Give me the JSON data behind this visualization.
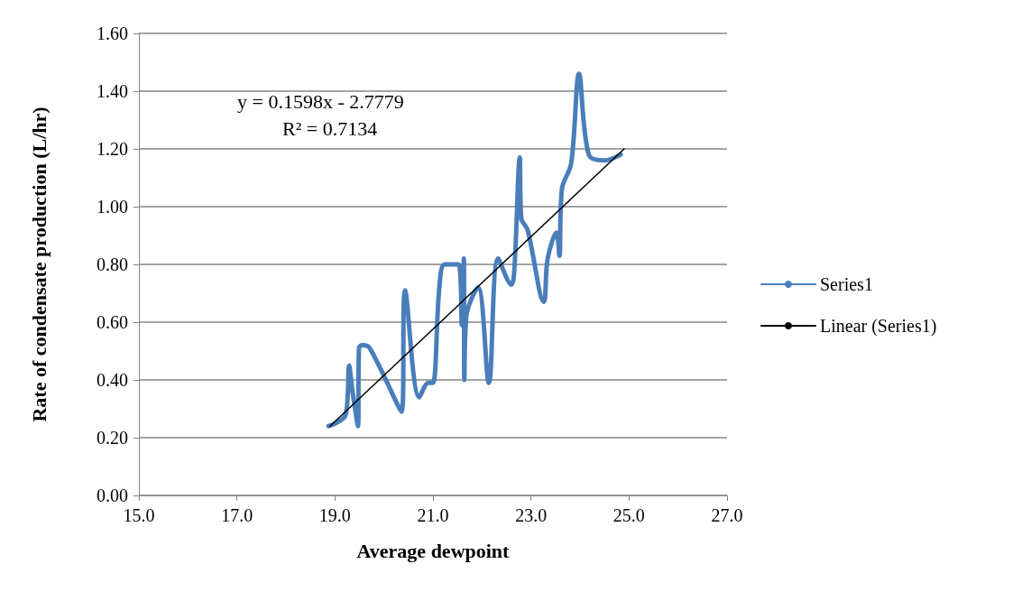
{
  "chart_data": {
    "type": "line",
    "xlabel": "Average dewpoint",
    "ylabel": "Rate of condensate production (L/hr)",
    "annotations": [
      "y = 0.1598x - 2.7779",
      "R² = 0.7134"
    ],
    "series": [
      {
        "name": "Series1",
        "color": "#4a7ebb",
        "x": [
          18.87,
          19.22,
          19.29,
          19.35,
          19.47,
          19.49,
          19.56,
          19.71,
          20.36,
          20.43,
          20.72,
          20.91,
          21.0,
          21.13,
          21.24,
          21.52,
          21.59,
          21.63,
          21.64,
          21.68,
          21.92,
          22.14,
          22.33,
          22.6,
          22.66,
          22.77,
          22.8,
          22.93,
          23.26,
          23.34,
          23.52,
          23.58,
          23.63,
          23.82,
          23.98,
          24.18,
          24.5,
          24.83
        ],
        "values": [
          0.24,
          0.28,
          0.45,
          0.37,
          0.24,
          0.51,
          0.52,
          0.51,
          0.29,
          0.71,
          0.34,
          0.39,
          0.39,
          0.72,
          0.8,
          0.8,
          0.59,
          0.82,
          0.4,
          0.62,
          0.72,
          0.39,
          0.82,
          0.73,
          0.78,
          1.17,
          0.96,
          0.92,
          0.67,
          0.82,
          0.91,
          0.83,
          1.06,
          1.15,
          1.46,
          1.18,
          1.16,
          1.18
        ]
      },
      {
        "name": "Linear (Series1)",
        "color": "#000000",
        "x": [
          18.9,
          24.9
        ],
        "values": [
          0.24,
          1.2
        ]
      }
    ],
    "xlim": [
      15,
      27
    ],
    "xticks": [
      {
        "value": 15,
        "label": "15.0"
      },
      {
        "value": 17,
        "label": "17.0"
      },
      {
        "value": 19,
        "label": "19.0"
      },
      {
        "value": 21,
        "label": "21.0"
      },
      {
        "value": 23,
        "label": "23.0"
      },
      {
        "value": 25,
        "label": "25.0"
      },
      {
        "value": 27,
        "label": "27.0"
      }
    ],
    "ylim": [
      0,
      1.6
    ],
    "yticks": [
      {
        "value": 0,
        "label": "0.00"
      },
      {
        "value": 0.2,
        "label": "0.20"
      },
      {
        "value": 0.4,
        "label": "0.40"
      },
      {
        "value": 0.6,
        "label": "0.60"
      },
      {
        "value": 0.8,
        "label": "0.80"
      },
      {
        "value": 1,
        "label": "1.00"
      },
      {
        "value": 1.2,
        "label": "1.20"
      },
      {
        "value": 1.4,
        "label": "1.40"
      },
      {
        "value": 1.6,
        "label": "1.60"
      }
    ],
    "grid": "y",
    "legend": "right",
    "marker": "none",
    "line_style": "solid"
  }
}
